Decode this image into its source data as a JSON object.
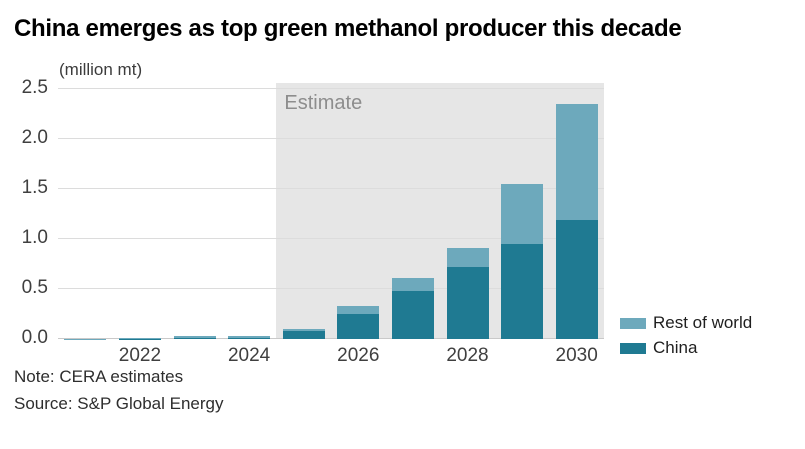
{
  "chart_data": {
    "type": "bar",
    "stacked": true,
    "title": "China emerges as top green methanol producer this decade",
    "unit_label": "(million mt)",
    "categories": [
      "2021",
      "2022",
      "2023",
      "2024",
      "2025",
      "2026",
      "2027",
      "2028",
      "2029",
      "2030"
    ],
    "series": [
      {
        "name": "China",
        "color": "#1f7a92",
        "values": [
          0.0,
          0.005,
          0.008,
          0.012,
          0.08,
          0.25,
          0.48,
          0.72,
          0.95,
          1.19
        ]
      },
      {
        "name": "Rest of world",
        "color": "#6da9bc",
        "values": [
          0.005,
          0.005,
          0.022,
          0.018,
          0.02,
          0.08,
          0.13,
          0.19,
          0.6,
          1.16
        ]
      }
    ],
    "totals": [
      0.005,
      0.01,
      0.03,
      0.03,
      0.1,
      0.33,
      0.61,
      0.91,
      1.55,
      2.35
    ],
    "ylim": [
      0,
      2.5
    ],
    "y_ticks": [
      "0.0",
      "0.5",
      "1.0",
      "1.5",
      "2.0",
      "2.5"
    ],
    "x_tick_labels": [
      "2022",
      "2024",
      "2026",
      "2028",
      "2030"
    ],
    "grid": true,
    "estimate": {
      "label": "Estimate",
      "from_category": "2025",
      "background": "#e6e6e6"
    },
    "legend": {
      "position": "bottom-right",
      "entries": [
        {
          "label": "Rest of world",
          "color": "#6da9bc"
        },
        {
          "label": "China",
          "color": "#1f7a92"
        }
      ]
    },
    "note": "Note: CERA estimates",
    "source": "Source: S&P Global Energy"
  }
}
